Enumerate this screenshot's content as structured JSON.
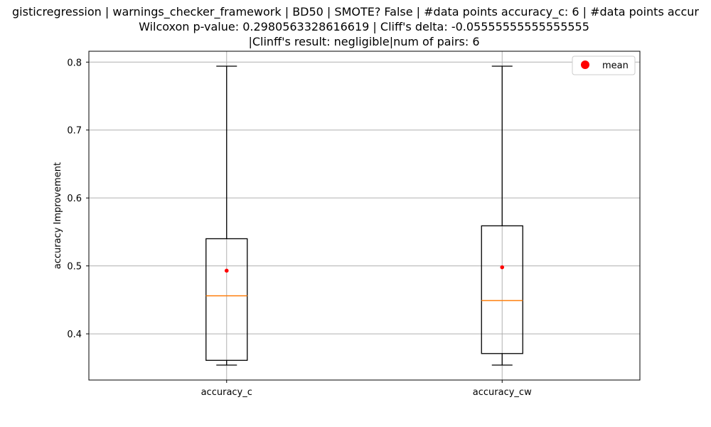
{
  "chart_data": {
    "type": "box",
    "title_lines": [
      "gisticregression | warnings_checker_framework | BD50 | SMOTE? False | #data points accuracy_c: 6 | #data points accur",
      "Wilcoxon p-value: 0.2980563328616619 | Cliff's delta: -0.05555555555555555",
      "|Clinff's result: negligible|num of pairs: 6"
    ],
    "ylabel": "accuracy Improvement",
    "xlabel": "",
    "ylim": [
      0.332,
      0.816
    ],
    "yticks": [
      0.4,
      0.5,
      0.6,
      0.7,
      0.8
    ],
    "ytick_labels": [
      "0.4",
      "0.5",
      "0.6",
      "0.7",
      "0.8"
    ],
    "categories": [
      "accuracy_c",
      "accuracy_cw"
    ],
    "boxes": [
      {
        "name": "accuracy_c",
        "whisker_low": 0.354,
        "q1": 0.361,
        "median": 0.456,
        "q3": 0.54,
        "whisker_high": 0.794,
        "mean": 0.493
      },
      {
        "name": "accuracy_cw",
        "whisker_low": 0.354,
        "q1": 0.371,
        "median": 0.449,
        "q3": 0.559,
        "whisker_high": 0.794,
        "mean": 0.498
      }
    ],
    "grid": true,
    "legend": {
      "position": "top-right",
      "entries": [
        {
          "label": "mean",
          "marker": "circle",
          "color": "#ff0000"
        }
      ]
    },
    "colors": {
      "median": "#ff7f0e",
      "mean": "#ff0000",
      "box": "#000000",
      "grid": "#b0b0b0"
    }
  }
}
